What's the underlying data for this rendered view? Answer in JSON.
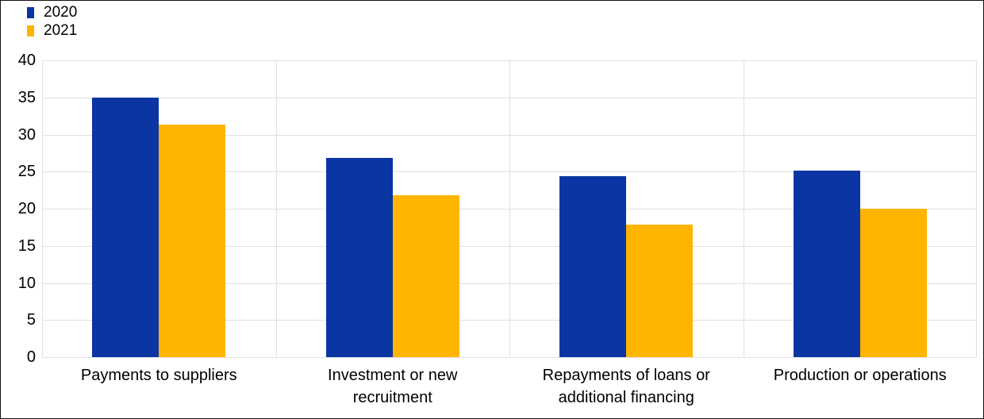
{
  "figure": {
    "background": "#FFFFFF",
    "frame_color": "#111111",
    "gridline_color": "#E0E0E0",
    "text_color": "#000000"
  },
  "chart_data": {
    "type": "bar",
    "title": "",
    "xlabel": "",
    "ylabel": "",
    "categories": [
      "Payments to suppliers",
      "Investment or new recruitment",
      "Repayments of loans or additional financing",
      "Production or operations"
    ],
    "series": [
      {
        "name": "2020",
        "color": "#0A35A3",
        "values": [
          35.0,
          26.9,
          24.4,
          25.1
        ]
      },
      {
        "name": "2021",
        "color": "#FFB400",
        "values": [
          31.3,
          21.8,
          17.9,
          20.0
        ]
      }
    ],
    "ylim": [
      0,
      40
    ],
    "yticks": [
      0,
      5,
      10,
      15,
      20,
      25,
      30,
      35,
      40
    ],
    "grid": "horizontal gridlines at each y tick plus vertical category separators",
    "legend_position": "top-left"
  }
}
